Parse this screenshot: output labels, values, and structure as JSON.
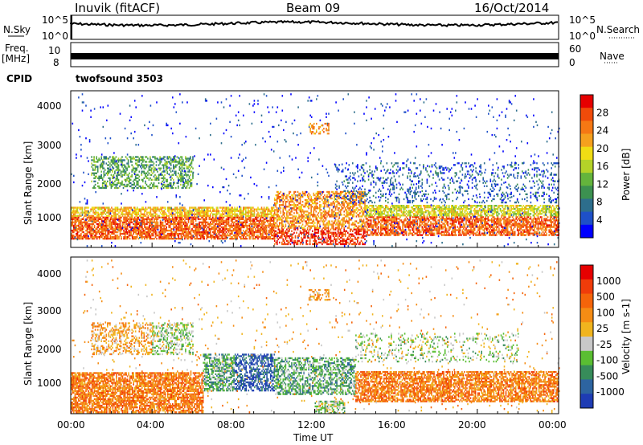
{
  "header": {
    "station": "Inuvik (fitACF)",
    "beam": "Beam 09",
    "date": "16/Oct/2014"
  },
  "strips": {
    "nsky_label": "N.Sky",
    "nsky_ticks": [
      "10^5",
      "10^0"
    ],
    "nsearch_label": "N.Search",
    "nsearch_ticks": [
      "10^5",
      "10^0"
    ],
    "freq_label": "Freq.",
    "freq_unit": "[MHz]",
    "freq_ticks": [
      "10",
      "8"
    ],
    "nave_label": "Nave",
    "nave_ticks": [
      "60",
      "0"
    ],
    "cpid_label": "CPID",
    "cpid_value": "twofsound 3503"
  },
  "chart_data": [
    {
      "type": "heatmap",
      "panel": "power",
      "ylabel": "Slant Range [km]",
      "xlabel": "Time UT",
      "xlim": [
        "00:00",
        "24:00"
      ],
      "ylim": [
        180,
        4500
      ],
      "x_ticks": [
        "00:00",
        "04:00",
        "08:00",
        "12:00",
        "16:00",
        "20:00",
        "00:00"
      ],
      "y_ticks": [
        "1000",
        "2000",
        "3000",
        "4000"
      ],
      "colorbar": {
        "label": "Power [dB]",
        "ticks": [
          "4",
          "8",
          "12",
          "16",
          "20",
          "24",
          "28"
        ],
        "colors": [
          "#0000ff",
          "#1e50c8",
          "#2d6e8c",
          "#3c9150",
          "#64b43c",
          "#b4d228",
          "#f0dc14",
          "#f5a01e",
          "#f57814",
          "#f04b0a",
          "#e60000"
        ]
      }
    },
    {
      "type": "heatmap",
      "panel": "velocity",
      "ylabel": "Slant Range [km]",
      "xlabel": "Time UT",
      "xlim": [
        "00:00",
        "24:00"
      ],
      "ylim": [
        180,
        4500
      ],
      "x_ticks": [
        "00:00",
        "04:00",
        "08:00",
        "12:00",
        "16:00",
        "20:00",
        "00:00"
      ],
      "y_ticks": [
        "1000",
        "2000",
        "3000",
        "4000"
      ],
      "colorbar": {
        "label": "Velocity [m s-1]",
        "ticks": [
          "1000",
          "500",
          "100",
          "25",
          "-25",
          "-100",
          "-500",
          "-1000"
        ],
        "colors": [
          "#1e3cb4",
          "#2d64a0",
          "#378c5a",
          "#5abe32",
          "#c8c8c8",
          "#f0b41e",
          "#f58c14",
          "#f5640a",
          "#f03c0a",
          "#e60000"
        ]
      }
    }
  ]
}
